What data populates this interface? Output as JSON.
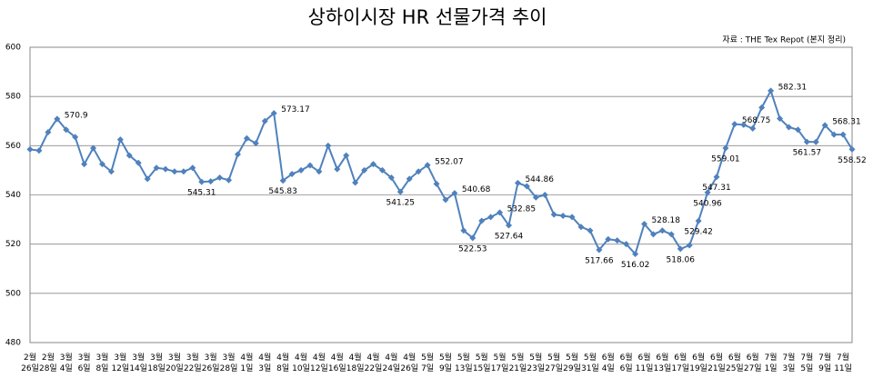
{
  "chart_data": {
    "type": "line",
    "title": "상하이시장 HR 선물가격 추이",
    "source": "자료 : THE Tex Repot (본지 정리)",
    "categories": [
      "2월\n26일",
      null,
      "2월\n28일",
      null,
      "3월\n4일",
      null,
      "3월\n6일",
      null,
      "3월\n8일",
      null,
      "3월\n12일",
      null,
      "3월\n14일",
      null,
      "3월\n18일",
      null,
      "3월\n20일",
      null,
      "3월\n22일",
      null,
      "3월\n26일",
      null,
      "3월\n28일",
      null,
      "4월\n1일",
      null,
      "4월\n3일",
      null,
      "4월\n8일",
      null,
      "4월\n10일",
      null,
      "4월\n12일",
      null,
      "4월\n16일",
      null,
      "4월\n18일",
      null,
      "4월\n22일",
      null,
      "4월\n24일",
      null,
      "4월\n26일",
      null,
      "5월\n7일",
      null,
      "5월\n9일",
      null,
      "5월\n13일",
      null,
      "5월\n15일",
      null,
      "5월\n17일",
      null,
      "5월\n21일",
      null,
      "5월\n23일",
      null,
      "5월\n27일",
      null,
      "5월\n29일",
      null,
      "5월\n31일",
      null,
      "6월\n4일",
      null,
      "6월\n6일",
      null,
      "6월\n11일",
      null,
      "6월\n13일",
      null,
      "6월\n17일",
      null,
      "6월\n19일",
      null,
      "6월\n21일",
      null,
      "6월\n25일",
      null,
      "6월\n27일",
      null,
      "7월\n1일",
      null,
      "7월\n3일",
      null,
      "7월\n5일",
      null,
      "7월\n9일",
      null,
      "7월\n11일",
      null
    ],
    "series": [
      {
        "name": "상하이시장 HR 선물가격",
        "color": "#4f81bd",
        "values": [
          558.5,
          558,
          565.5,
          570.9,
          566.5,
          563.5,
          552.5,
          559,
          552.5,
          549.5,
          562.5,
          556,
          553,
          546.5,
          551,
          550.5,
          549.5,
          549.5,
          551,
          545.31,
          545.5,
          547,
          546,
          556.5,
          563,
          561,
          570,
          573.17,
          545.83,
          548.5,
          550,
          552,
          549.5,
          560,
          550.5,
          556,
          545,
          550,
          552.5,
          550,
          547,
          541.25,
          546.5,
          549.5,
          552.07,
          544.5,
          538,
          540.68,
          525.5,
          522.53,
          529.5,
          531,
          532.85,
          527.64,
          544.86,
          543.5,
          539,
          540,
          532,
          531.5,
          531,
          527,
          525.5,
          517.66,
          522,
          521.5,
          520,
          516.02,
          528.18,
          524,
          525.5,
          524,
          518.06,
          519.5,
          529.42,
          540.96,
          547.31,
          559.01,
          568.75,
          568.5,
          567,
          575.5,
          582.31,
          571,
          567.5,
          566.5,
          561.57,
          561.5,
          568.31,
          564.5,
          564.5,
          558.52
        ],
        "value_labels": [
          null,
          null,
          null,
          "570.9",
          null,
          null,
          null,
          null,
          null,
          null,
          null,
          null,
          null,
          null,
          null,
          null,
          null,
          null,
          null,
          "545.31",
          null,
          null,
          null,
          null,
          null,
          null,
          null,
          "573.17",
          "545.83",
          null,
          null,
          null,
          null,
          null,
          null,
          null,
          null,
          null,
          null,
          null,
          null,
          "541.25",
          null,
          null,
          "552.07",
          null,
          null,
          "540.68",
          null,
          "522.53",
          null,
          null,
          "532.85",
          "527.64",
          "544.86",
          null,
          null,
          null,
          null,
          null,
          null,
          null,
          null,
          "517.66",
          null,
          null,
          null,
          "516.02",
          "528.18",
          null,
          null,
          null,
          "518.06",
          null,
          "529.42",
          "540.96",
          "547.31",
          "559.01",
          "568.75",
          null,
          null,
          null,
          "582.31",
          null,
          null,
          null,
          "561.57",
          null,
          "568.31",
          null,
          null,
          "558.52"
        ]
      }
    ],
    "ylim": [
      480,
      600
    ],
    "yticks": [
      480,
      500,
      520,
      540,
      560,
      580,
      600
    ],
    "grid": true
  }
}
